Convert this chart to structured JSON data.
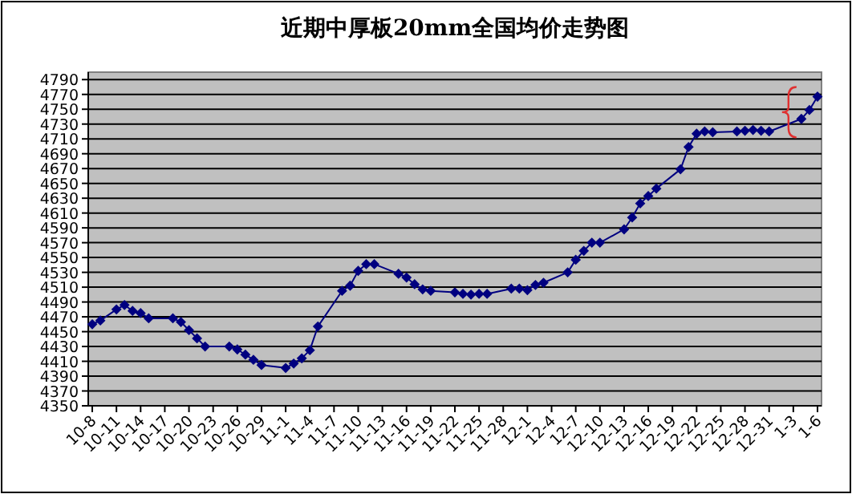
{
  "chart_data": {
    "type": "line",
    "title": "近期中厚板20mm全国均价走势图",
    "categories": [
      "10-8",
      null,
      null,
      "10-11",
      null,
      null,
      "10-14",
      null,
      null,
      "10-17",
      null,
      null,
      "10-20",
      null,
      null,
      "10-23",
      null,
      null,
      "10-26",
      null,
      null,
      "10-29",
      null,
      null,
      "11-1",
      null,
      null,
      "11-4",
      null,
      null,
      "11-7",
      null,
      null,
      "11-10",
      null,
      null,
      "11-13",
      null,
      null,
      "11-16",
      null,
      null,
      "11-19",
      null,
      null,
      "11-22",
      null,
      null,
      "11-25",
      null,
      null,
      "11-28",
      null,
      null,
      "12-1",
      null,
      null,
      "12-4",
      null,
      null,
      "12-7",
      null,
      null,
      "12-10",
      null,
      null,
      "12-13",
      null,
      null,
      "12-16",
      null,
      null,
      "12-19",
      null,
      null,
      "12-22",
      null,
      null,
      "12-25",
      null,
      null,
      "12-28",
      null,
      null,
      "12-31",
      null,
      null,
      "1-3",
      null,
      null,
      "1-6"
    ],
    "series": [
      {
        "color": "#000080",
        "marker": "diamond",
        "values": [
          4460,
          4465,
          null,
          4480,
          4486,
          4478,
          4475,
          4468,
          null,
          null,
          4468,
          4463,
          4452,
          4441,
          4430,
          null,
          null,
          4430,
          4426,
          4419,
          4412,
          4405,
          null,
          null,
          4401,
          4407,
          4414,
          4425,
          4457,
          null,
          null,
          4505,
          4512,
          4532,
          4541,
          4541,
          null,
          null,
          4528,
          4523,
          4514,
          4507,
          4505,
          null,
          null,
          4503,
          4501,
          4500,
          4501,
          4501,
          null,
          null,
          4508,
          4508,
          4506,
          4513,
          4516,
          null,
          null,
          4530,
          4547,
          4559,
          4570,
          4570,
          null,
          null,
          4588,
          4604,
          4623,
          4633,
          4643,
          null,
          null,
          4669,
          4699,
          4717,
          4720,
          4719,
          null,
          null,
          4720,
          4721,
          4722,
          4721,
          4720,
          null,
          null,
          null,
          4737,
          4749,
          4767
        ]
      }
    ],
    "ylim": [
      4350,
      4800
    ],
    "yticks": [
      4350,
      4370,
      4390,
      4410,
      4430,
      4450,
      4470,
      4490,
      4510,
      4530,
      4550,
      4570,
      4590,
      4610,
      4630,
      4650,
      4670,
      4690,
      4710,
      4730,
      4750,
      4770,
      4790
    ],
    "grid": "y",
    "line_style": "solid"
  }
}
